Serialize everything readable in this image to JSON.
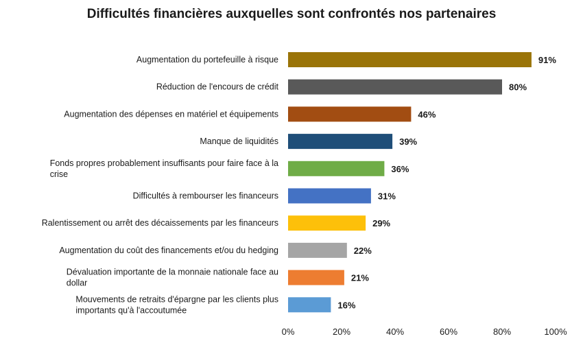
{
  "chart_data": {
    "type": "bar",
    "orientation": "horizontal",
    "title": "Difficultés financières auxquelles sont confrontés nos partenaires",
    "xlabel": "",
    "ylabel": "",
    "xlim": [
      0,
      100
    ],
    "grid": false,
    "legend": "none",
    "categories": [
      [
        "Augmentation du portefeuille à risque"
      ],
      [
        "Réduction de l'encours de crédit"
      ],
      [
        "Augmentation des dépenses en matériel et équipements"
      ],
      [
        "Manque de liquidités"
      ],
      [
        "Fonds propres probablement insuffisants pour faire face à la",
        "crise"
      ],
      [
        "Difficultés à rembourser les financeurs"
      ],
      [
        "Ralentissement ou arrêt des décaissements par les financeurs"
      ],
      [
        "Augmentation du coût des financements et/ou du hedging"
      ],
      [
        "Dévaluation importante de la monnaie nationale face au",
        "dollar"
      ],
      [
        "Mouvements de retraits d'épargne par les clients plus",
        "importants qu'à l'accoutumée"
      ]
    ],
    "values": [
      91,
      80,
      46,
      39,
      36,
      31,
      29,
      22,
      21,
      16
    ],
    "value_labels": [
      "91%",
      "80%",
      "46%",
      "39%",
      "36%",
      "31%",
      "29%",
      "22%",
      "21%",
      "16%"
    ],
    "colors": [
      "#9a7409",
      "#595959",
      "#a24d12",
      "#1f4e79",
      "#6fac47",
      "#4472c4",
      "#fdc00a",
      "#a5a5a5",
      "#ed7d31",
      "#5b9bd5"
    ],
    "ticks": [
      0,
      20,
      40,
      60,
      80,
      100
    ],
    "tick_labels": [
      "0%",
      "20%",
      "40%",
      "60%",
      "80%",
      "100%"
    ]
  }
}
